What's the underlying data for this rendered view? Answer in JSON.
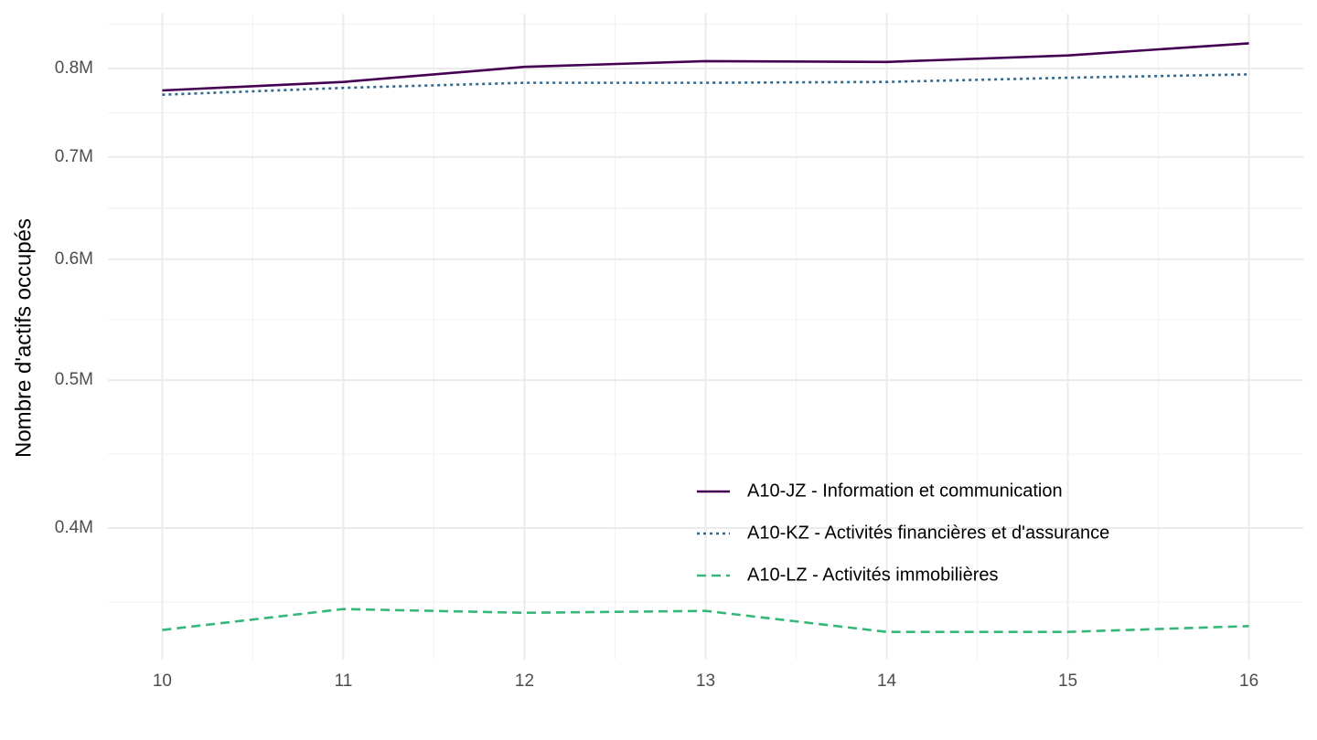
{
  "chart_data": {
    "type": "line",
    "y_label": "Nombre d'actifs occupés",
    "x": [
      10,
      11,
      12,
      13,
      14,
      15,
      16
    ],
    "xlim": [
      9.7,
      16.3
    ],
    "xticks": [
      10,
      11,
      12,
      13,
      14,
      15,
      16
    ],
    "ylim": [
      328000,
      869000
    ],
    "log_y": true,
    "grid": true,
    "legend_position": "bottom-right",
    "yticks": [
      {
        "value": 400000,
        "label": "0.4M"
      },
      {
        "value": 500000,
        "label": "0.5M"
      },
      {
        "value": 600000,
        "label": "0.6M"
      },
      {
        "value": 700000,
        "label": "0.7M"
      },
      {
        "value": 800000,
        "label": "0.8M"
      }
    ],
    "series": [
      {
        "name": "A10-JZ - Information et communication",
        "color": "#440154",
        "linetype": "solid",
        "values": [
          774000,
          784000,
          802000,
          809000,
          808000,
          816000,
          831000
        ]
      },
      {
        "name": "A10-KZ - Activités financières et d'assurance",
        "color": "#31688e",
        "linetype": "dotted",
        "values": [
          769000,
          777000,
          783000,
          783000,
          784000,
          789000,
          793000
        ]
      },
      {
        "name": "A10-LZ - Activités immobilières",
        "color": "#35b779",
        "linetype": "dashed",
        "values": [
          343000,
          354000,
          352000,
          353000,
          342000,
          342000,
          345000
        ]
      }
    ]
  }
}
